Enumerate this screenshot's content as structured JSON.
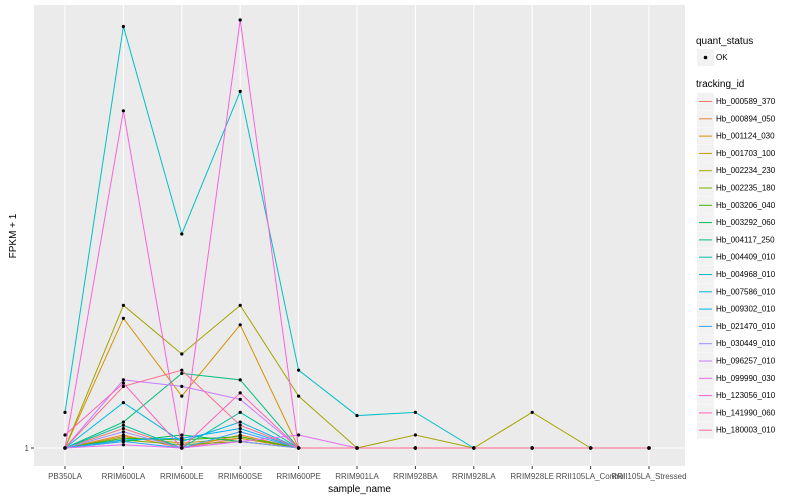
{
  "chart_data": {
    "type": "line",
    "xlabel": "sample_name",
    "ylabel": "FPKM + 1",
    "categories": [
      "PB350LA",
      "RRIM600LA",
      "RRIM600LE",
      "RRIM600SE",
      "RRIM600PE",
      "RRIM901LA",
      "RRIM928BA",
      "RRIM928LA",
      "RRIM928LE",
      "RRII105LA_Control",
      "RRII105LA_Stressed"
    ],
    "y_ticks": [
      {
        "value": 1,
        "label": "1"
      }
    ],
    "ylim": [
      0.97,
      14.5
    ],
    "grid": true,
    "legend_position": "right",
    "point_legend": {
      "title": "quant_status",
      "items": [
        "OK"
      ]
    },
    "color_legend_title": "tracking_id",
    "series": [
      {
        "name": "Hb_000589_370",
        "color": "#F8766D",
        "values": [
          1.0,
          1.6,
          1.0,
          1.3,
          1.0,
          1.0,
          1.0,
          1.0,
          1.0,
          1.0,
          1.0
        ]
      },
      {
        "name": "Hb_000894_050",
        "color": "#EA8331",
        "values": [
          1.0,
          1.4,
          1.0,
          1.4,
          1.0,
          1.0,
          1.0,
          1.0,
          1.0,
          1.0,
          1.0
        ]
      },
      {
        "name": "Hb_001124_030",
        "color": "#D89000",
        "values": [
          1.0,
          5.0,
          2.6,
          4.8,
          1.0,
          1.0,
          1.0,
          1.0,
          1.0,
          1.0,
          1.0
        ]
      },
      {
        "name": "Hb_001703_100",
        "color": "#C09B00",
        "values": [
          1.0,
          1.35,
          1.15,
          1.3,
          1.0,
          1.0,
          1.0,
          1.0,
          1.0,
          1.0,
          1.0
        ]
      },
      {
        "name": "Hb_002234_230",
        "color": "#A3A500",
        "values": [
          1.0,
          5.4,
          3.9,
          5.4,
          2.6,
          1.0,
          1.4,
          1.0,
          2.1,
          1.0,
          1.0
        ]
      },
      {
        "name": "Hb_002235_180",
        "color": "#7CAE00",
        "values": [
          1.0,
          1.25,
          1.1,
          1.2,
          1.0,
          1.0,
          1.0,
          1.0,
          1.0,
          1.0,
          1.0
        ]
      },
      {
        "name": "Hb_003206_040",
        "color": "#39B600",
        "values": [
          1.0,
          1.3,
          1.25,
          1.35,
          1.0,
          1.0,
          1.0,
          1.0,
          1.0,
          1.0,
          1.0
        ]
      },
      {
        "name": "Hb_003292_060",
        "color": "#00BB4E",
        "values": [
          1.0,
          1.2,
          1.4,
          1.2,
          1.0,
          1.0,
          1.0,
          1.0,
          1.0,
          1.0,
          1.0
        ]
      },
      {
        "name": "Hb_004117_250",
        "color": "#00BF7D",
        "values": [
          1.0,
          1.8,
          3.3,
          3.1,
          1.0,
          1.0,
          1.0,
          1.0,
          1.0,
          1.0,
          1.0
        ]
      },
      {
        "name": "Hb_004409_010",
        "color": "#00C1A3",
        "values": [
          1.0,
          1.7,
          1.0,
          2.1,
          1.0,
          1.0,
          1.0,
          1.0,
          1.0,
          1.0,
          1.0
        ]
      },
      {
        "name": "Hb_004968_010",
        "color": "#00BFC4",
        "values": [
          2.1,
          14.0,
          7.6,
          12.0,
          3.4,
          2.0,
          2.1,
          1.0,
          1.0,
          1.0,
          1.0
        ]
      },
      {
        "name": "Hb_007586_010",
        "color": "#00BAE0",
        "values": [
          1.0,
          2.4,
          1.2,
          1.8,
          1.0,
          1.0,
          1.0,
          1.0,
          1.0,
          1.0,
          1.0
        ]
      },
      {
        "name": "Hb_009302_010",
        "color": "#00B0F6",
        "values": [
          1.0,
          1.25,
          1.3,
          1.6,
          1.0,
          1.0,
          1.0,
          1.0,
          1.0,
          1.0,
          1.0
        ]
      },
      {
        "name": "Hb_021470_010",
        "color": "#35A2FF",
        "values": [
          1.0,
          1.2,
          1.0,
          1.5,
          1.0,
          1.0,
          1.0,
          1.0,
          1.0,
          1.0,
          1.0
        ]
      },
      {
        "name": "Hb_030449_010",
        "color": "#9590FF",
        "values": [
          1.0,
          1.5,
          1.0,
          1.2,
          1.0,
          1.0,
          1.0,
          1.0,
          1.0,
          1.0,
          1.0
        ]
      },
      {
        "name": "Hb_096257_010",
        "color": "#C77CFF",
        "values": [
          1.0,
          3.1,
          2.9,
          2.5,
          1.0,
          1.0,
          1.0,
          1.0,
          1.0,
          1.0,
          1.0
        ]
      },
      {
        "name": "Hb_099990_030",
        "color": "#E76BF3",
        "values": [
          1.0,
          1.1,
          1.0,
          1.2,
          1.4,
          1.0,
          1.0,
          1.0,
          1.0,
          1.0,
          1.0
        ]
      },
      {
        "name": "Hb_123056_010",
        "color": "#FA62DB",
        "values": [
          1.0,
          11.4,
          1.0,
          14.2,
          1.0,
          1.0,
          1.0,
          1.0,
          1.0,
          1.0,
          1.0
        ]
      },
      {
        "name": "Hb_141990_060",
        "color": "#FF62BC",
        "values": [
          1.4,
          3.0,
          1.0,
          2.7,
          1.0,
          1.0,
          1.0,
          1.0,
          1.0,
          1.0,
          1.0
        ]
      },
      {
        "name": "Hb_180003_010",
        "color": "#FF6C91",
        "values": [
          1.0,
          2.9,
          3.4,
          1.7,
          1.0,
          1.0,
          1.0,
          1.0,
          1.0,
          1.0,
          1.0
        ]
      }
    ]
  }
}
